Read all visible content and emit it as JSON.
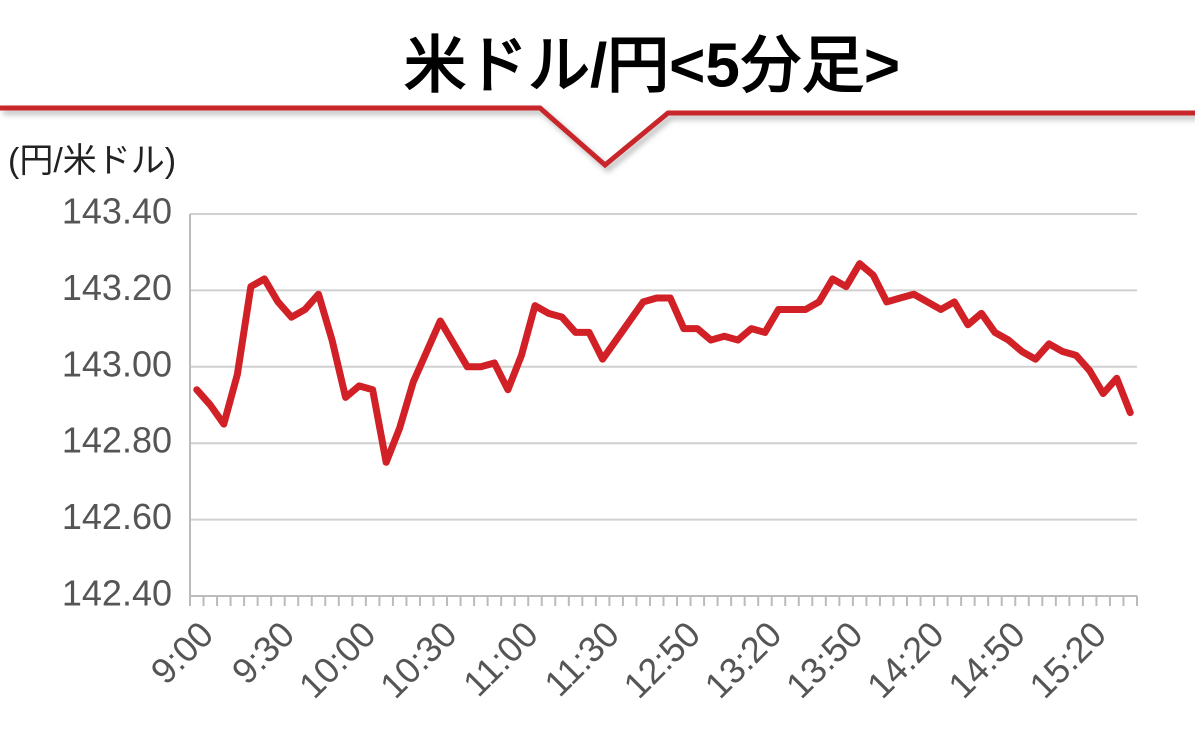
{
  "chart_data": {
    "type": "line",
    "title": "米ドル/円<5分足>",
    "y_axis_label": "(円/米ドル)",
    "categories": [
      "9:00",
      null,
      null,
      null,
      null,
      null,
      "9:30",
      null,
      null,
      null,
      null,
      null,
      "10:00",
      null,
      null,
      null,
      null,
      null,
      "10:30",
      null,
      null,
      null,
      null,
      null,
      "11:00",
      null,
      null,
      null,
      null,
      null,
      "11:30",
      null,
      null,
      null,
      null,
      null,
      "12:50",
      null,
      null,
      null,
      null,
      null,
      "13:20",
      null,
      null,
      null,
      null,
      null,
      "13:50",
      null,
      null,
      null,
      null,
      null,
      "14:20",
      null,
      null,
      null,
      null,
      null,
      "14:50",
      null,
      null,
      null,
      null,
      null,
      "15:20",
      null,
      null,
      null
    ],
    "series": [
      {
        "color": "#d22027",
        "values": [
          142.94,
          142.9,
          142.85,
          142.98,
          143.21,
          143.23,
          143.17,
          143.13,
          143.15,
          143.19,
          143.07,
          142.92,
          142.95,
          142.94,
          142.75,
          142.84,
          142.96,
          143.04,
          143.12,
          143.06,
          143.0,
          143.0,
          143.01,
          142.94,
          143.03,
          143.16,
          143.14,
          143.13,
          143.09,
          143.09,
          143.02,
          143.07,
          143.12,
          143.17,
          143.18,
          143.18,
          143.1,
          143.1,
          143.07,
          143.08,
          143.07,
          143.1,
          143.09,
          143.15,
          143.15,
          143.15,
          143.17,
          143.23,
          143.21,
          143.27,
          143.24,
          143.17,
          143.18,
          143.19,
          143.17,
          143.15,
          143.17,
          143.11,
          143.14,
          143.09,
          143.07,
          143.04,
          143.02,
          143.06,
          143.04,
          143.03,
          142.99,
          142.93,
          142.97,
          142.88
        ]
      }
    ],
    "ylim": [
      142.4,
      143.4
    ],
    "yticks": [
      {
        "value": 142.4,
        "label": "142.40"
      },
      {
        "value": 142.6,
        "label": "142.60"
      },
      {
        "value": 142.8,
        "label": "142.80"
      },
      {
        "value": 143.0,
        "label": "143.00"
      },
      {
        "value": 143.2,
        "label": "143.20"
      },
      {
        "value": 143.4,
        "label": "143.40"
      }
    ],
    "grid": true
  }
}
